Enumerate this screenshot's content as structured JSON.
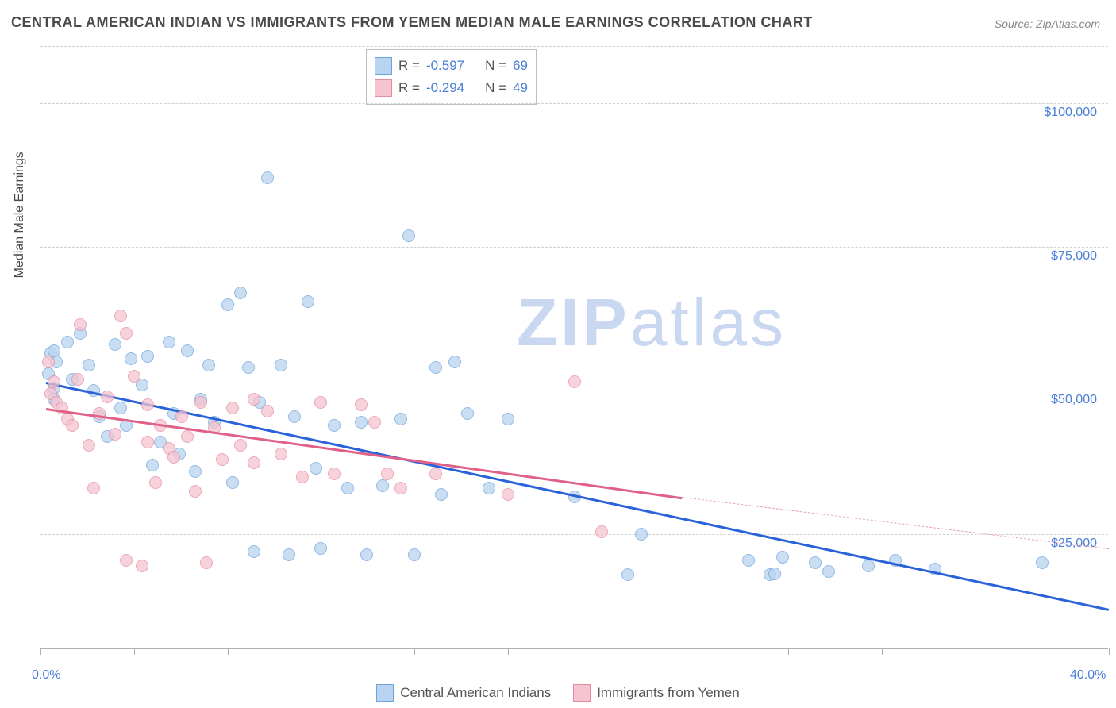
{
  "title": "CENTRAL AMERICAN INDIAN VS IMMIGRANTS FROM YEMEN MEDIAN MALE EARNINGS CORRELATION CHART",
  "source": "Source: ZipAtlas.com",
  "watermark": {
    "zip": "ZIP",
    "atlas": "atlas"
  },
  "chart": {
    "type": "scatter",
    "background_color": "#ffffff",
    "grid_color": "#d0d0d0",
    "axis_color": "#b0b0b0",
    "tick_label_color": "#4a7fd8",
    "axis_title_color": "#4a4a4a",
    "label_fontsize": 16,
    "title_fontsize": 18,
    "yaxis_title": "Median Male Earnings",
    "xlim": [
      0,
      40
    ],
    "ylim": [
      5000,
      110000
    ],
    "xticks": [
      0,
      3.5,
      7,
      10.5,
      14,
      17.5,
      21,
      24.5,
      28,
      31.5,
      35,
      40
    ],
    "xaxis_labels": [
      {
        "value": 0,
        "text": "0.0%"
      },
      {
        "value": 40,
        "text": "40.0%"
      }
    ],
    "gridlines": [
      {
        "value": 25000,
        "label": "$25,000"
      },
      {
        "value": 50000,
        "label": "$50,000"
      },
      {
        "value": 75000,
        "label": "$75,000"
      },
      {
        "value": 100000,
        "label": "$100,000"
      },
      {
        "value": 110000,
        "label": ""
      }
    ],
    "marker_size": 16,
    "series": [
      {
        "name": "Central American Indians",
        "fill": "#b8d4f0",
        "stroke": "#6fa3dc",
        "points": [
          [
            0.4,
            56500
          ],
          [
            0.3,
            53000
          ],
          [
            0.5,
            57000
          ],
          [
            0.5,
            50500
          ],
          [
            0.5,
            48500
          ],
          [
            0.6,
            55000
          ],
          [
            1.0,
            58500
          ],
          [
            1.2,
            52000
          ],
          [
            1.5,
            60000
          ],
          [
            1.8,
            54500
          ],
          [
            2.0,
            50000
          ],
          [
            2.2,
            45500
          ],
          [
            2.5,
            42000
          ],
          [
            2.8,
            58000
          ],
          [
            3.0,
            47000
          ],
          [
            3.2,
            44000
          ],
          [
            3.4,
            55500
          ],
          [
            3.8,
            51000
          ],
          [
            4.0,
            56000
          ],
          [
            4.2,
            37000
          ],
          [
            4.5,
            41000
          ],
          [
            4.8,
            58500
          ],
          [
            5.0,
            46000
          ],
          [
            5.2,
            39000
          ],
          [
            5.5,
            57000
          ],
          [
            5.8,
            36000
          ],
          [
            6.0,
            48500
          ],
          [
            6.3,
            54500
          ],
          [
            6.5,
            44500
          ],
          [
            7.0,
            65000
          ],
          [
            7.2,
            34000
          ],
          [
            7.5,
            67000
          ],
          [
            7.8,
            54000
          ],
          [
            8.0,
            22000
          ],
          [
            8.2,
            48000
          ],
          [
            8.5,
            87000
          ],
          [
            9.0,
            54500
          ],
          [
            9.3,
            21500
          ],
          [
            9.5,
            45500
          ],
          [
            10.0,
            65500
          ],
          [
            10.3,
            36500
          ],
          [
            10.5,
            22500
          ],
          [
            11.0,
            44000
          ],
          [
            11.5,
            33000
          ],
          [
            12.0,
            44500
          ],
          [
            12.2,
            21500
          ],
          [
            12.8,
            33500
          ],
          [
            13.5,
            45000
          ],
          [
            13.8,
            77000
          ],
          [
            14.0,
            21500
          ],
          [
            14.8,
            54000
          ],
          [
            15.0,
            32000
          ],
          [
            15.5,
            55000
          ],
          [
            16.0,
            46000
          ],
          [
            16.8,
            33000
          ],
          [
            17.5,
            45000
          ],
          [
            20.0,
            31500
          ],
          [
            22.0,
            18000
          ],
          [
            22.5,
            25000
          ],
          [
            26.5,
            20500
          ],
          [
            27.3,
            18000
          ],
          [
            27.8,
            21000
          ],
          [
            29.0,
            20000
          ],
          [
            29.5,
            18500
          ],
          [
            31.0,
            19500
          ],
          [
            32.0,
            20500
          ],
          [
            33.5,
            19000
          ],
          [
            37.5,
            20000
          ],
          [
            27.5,
            18100
          ]
        ],
        "trend": {
          "x1": 0.2,
          "y1": 51500,
          "x2": 40,
          "y2": 12000,
          "color": "#2962d9",
          "width": 2.5
        }
      },
      {
        "name": "Immigrants from Yemen",
        "fill": "#f5c4d0",
        "stroke": "#e38ba2",
        "points": [
          [
            0.3,
            55000
          ],
          [
            0.4,
            49500
          ],
          [
            0.5,
            51500
          ],
          [
            0.6,
            48000
          ],
          [
            0.8,
            47000
          ],
          [
            1.0,
            45000
          ],
          [
            1.2,
            44000
          ],
          [
            1.4,
            52000
          ],
          [
            1.5,
            61500
          ],
          [
            1.8,
            40500
          ],
          [
            2.0,
            33000
          ],
          [
            2.2,
            46000
          ],
          [
            2.5,
            49000
          ],
          [
            2.8,
            42500
          ],
          [
            3.0,
            63000
          ],
          [
            3.2,
            60000
          ],
          [
            3.2,
            20500
          ],
          [
            3.5,
            52500
          ],
          [
            3.8,
            19500
          ],
          [
            4.0,
            47500
          ],
          [
            4.0,
            41000
          ],
          [
            4.3,
            34000
          ],
          [
            4.5,
            44000
          ],
          [
            4.8,
            40000
          ],
          [
            5.0,
            38500
          ],
          [
            5.3,
            45500
          ],
          [
            5.5,
            42000
          ],
          [
            5.8,
            32500
          ],
          [
            6.0,
            48000
          ],
          [
            6.2,
            20000
          ],
          [
            6.5,
            43500
          ],
          [
            6.8,
            38000
          ],
          [
            7.2,
            47000
          ],
          [
            7.5,
            40500
          ],
          [
            8.0,
            48500
          ],
          [
            8.0,
            37500
          ],
          [
            8.5,
            46500
          ],
          [
            9.0,
            39000
          ],
          [
            9.8,
            35000
          ],
          [
            10.5,
            48000
          ],
          [
            11.0,
            35500
          ],
          [
            12.0,
            47500
          ],
          [
            12.5,
            44500
          ],
          [
            13.0,
            35500
          ],
          [
            13.5,
            33000
          ],
          [
            14.8,
            35500
          ],
          [
            17.5,
            32000
          ],
          [
            20.0,
            51500
          ],
          [
            21.0,
            25500
          ]
        ],
        "trend": {
          "x1": 0.2,
          "y1": 47000,
          "x2": 24,
          "y2": 31500,
          "color": "#e06088",
          "width": 2.5
        },
        "trend_dash": {
          "x1": 24,
          "y1": 31500,
          "x2": 40,
          "y2": 22500,
          "color": "#e8a0b5"
        }
      }
    ]
  },
  "corr_box": {
    "rows": [
      {
        "swatch_fill": "#b8d4f0",
        "swatch_stroke": "#6fa3dc",
        "r_label": "R =",
        "r": "-0.597",
        "n_label": "N =",
        "n": "69"
      },
      {
        "swatch_fill": "#f5c4d0",
        "swatch_stroke": "#e38ba2",
        "r_label": "R =",
        "r": "-0.294",
        "n_label": "N =",
        "n": "49"
      }
    ]
  },
  "bottom_legend": [
    {
      "swatch_fill": "#b8d4f0",
      "swatch_stroke": "#6fa3dc",
      "label": "Central American Indians"
    },
    {
      "swatch_fill": "#f5c4d0",
      "swatch_stroke": "#e38ba2",
      "label": "Immigrants from Yemen"
    }
  ]
}
